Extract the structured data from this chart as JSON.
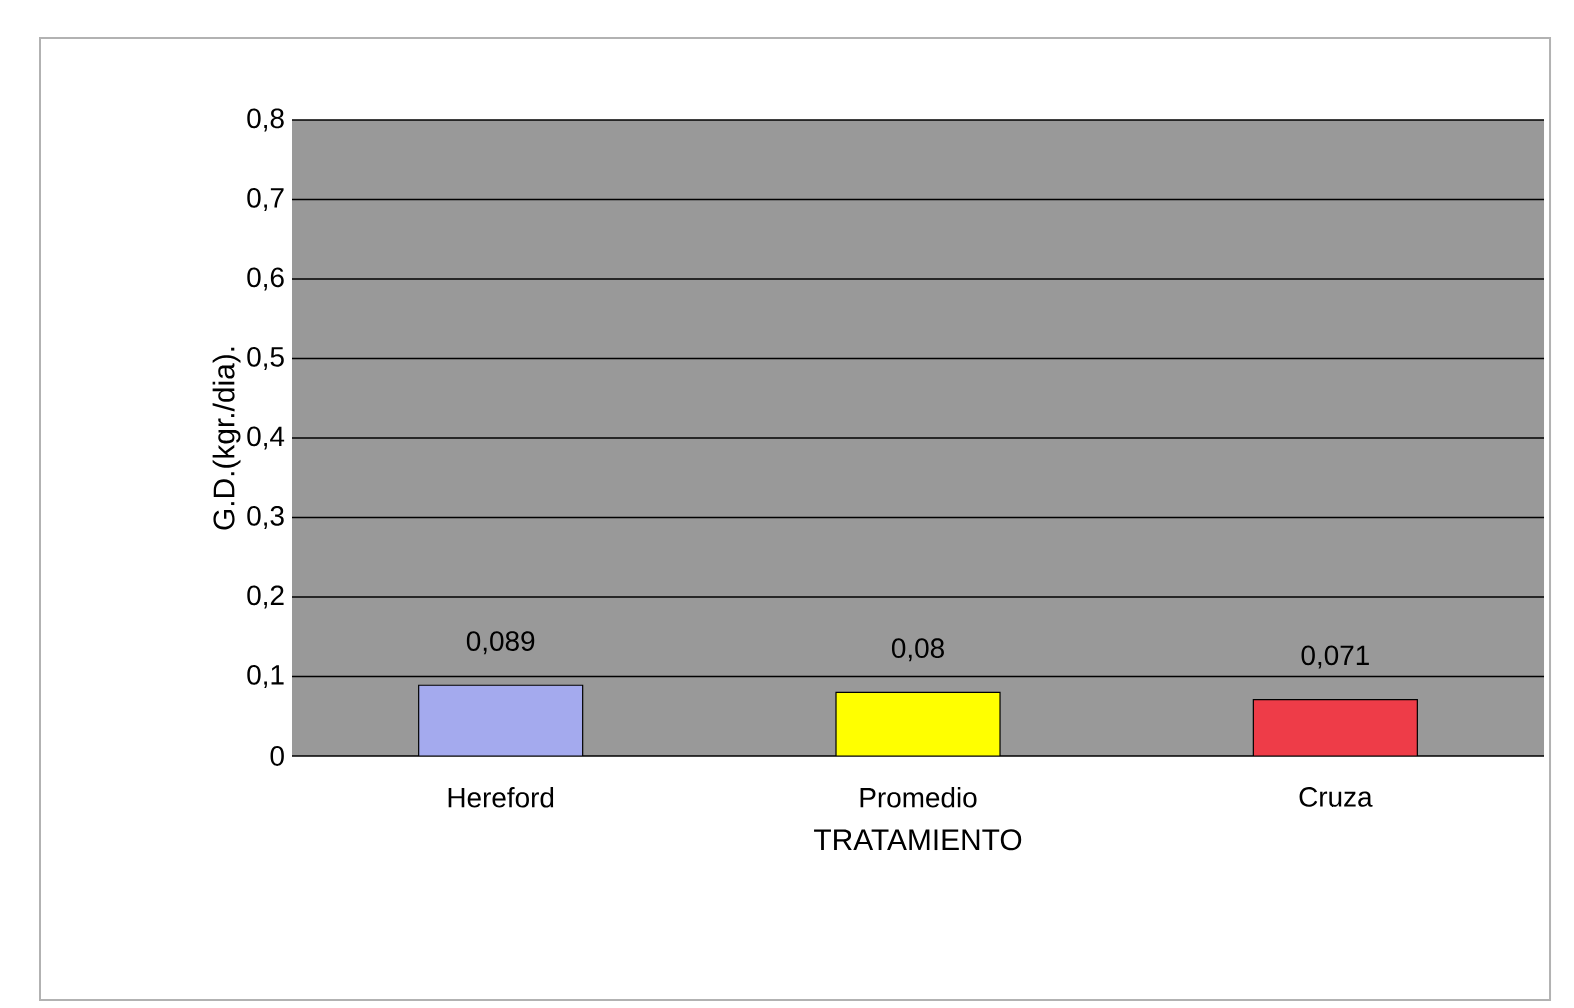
{
  "chart_data": {
    "type": "bar",
    "xlabel": "TRATAMIENTO",
    "ylabel": "G.D.(kgr./dia).",
    "categories": [
      "Hereford",
      "Promedio",
      "Cruza"
    ],
    "values": [
      0.089,
      0.08,
      0.071
    ],
    "value_labels": [
      "0,089",
      "0,08",
      "0,071"
    ],
    "colors": [
      "#a4aaee",
      "#ffff00",
      "#ee3c48"
    ],
    "ylim": [
      0,
      0.8
    ],
    "yticks": [
      0,
      {
        "value": 0.1,
        "label": "0,1"
      },
      {
        "value": 0.2,
        "label": "0,2"
      },
      {
        "value": 0.3,
        "label": "0,3"
      },
      {
        "value": 0.4,
        "label": "0,4"
      },
      {
        "value": 0.5,
        "label": "0,5"
      },
      {
        "value": 0.6,
        "label": "0,6"
      },
      {
        "value": 0.7,
        "label": "0,7"
      },
      {
        "value": 0.8,
        "label": "0,8"
      }
    ],
    "grid": "y"
  }
}
